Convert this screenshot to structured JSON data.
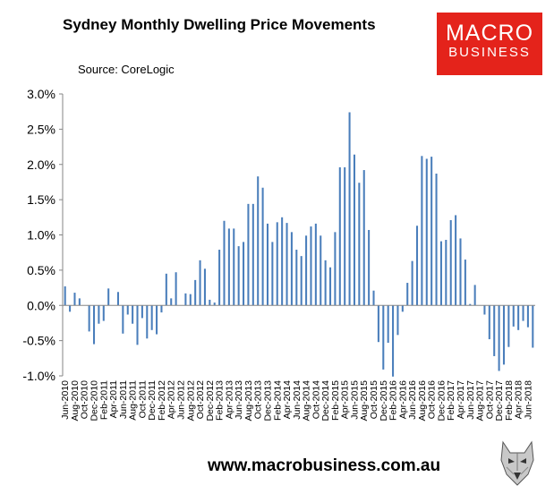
{
  "title": "Sydney Monthly Dwelling Price Movements",
  "source": "Source: CoreLogic",
  "logo": {
    "line1": "MACRO",
    "line2": "BUSINESS",
    "color": "#e4231b"
  },
  "footer_url": "www.macrobusiness.com.au",
  "colors": {
    "bar": "#4a7ebb",
    "axis": "#868686"
  },
  "chart_data": {
    "type": "bar",
    "title": "Sydney Monthly Dwelling Price Movements",
    "xlabel": "",
    "ylabel": "",
    "ylim": [
      -1.0,
      3.0
    ],
    "y_ticks": [
      "3.0%",
      "2.5%",
      "2.0%",
      "1.5%",
      "1.0%",
      "0.5%",
      "0.0%",
      "-0.5%",
      "-1.0%"
    ],
    "grid": false,
    "legend": "none",
    "x_tick_labels": [
      "Jun-2010",
      "Aug-2010",
      "Oct-2010",
      "Dec-2010",
      "Feb-2011",
      "Apr-2011",
      "Jun-2011",
      "Aug-2011",
      "Oct-2011",
      "Dec-2011",
      "Feb-2012",
      "Apr-2012",
      "Jun-2012",
      "Aug-2012",
      "Oct-2012",
      "Dec-2012",
      "Feb-2013",
      "Apr-2013",
      "Jun-2013",
      "Aug-2013",
      "Oct-2013",
      "Dec-2013",
      "Feb-2014",
      "Apr-2014",
      "Jun-2014",
      "Aug-2014",
      "Oct-2014",
      "Dec-2014",
      "Feb-2015",
      "Apr-2015",
      "Jun-2015",
      "Aug-2015",
      "Oct-2015",
      "Dec-2015",
      "Feb-2016",
      "Apr-2016",
      "Jun-2016",
      "Aug-2016",
      "Oct-2016",
      "Dec-2016",
      "Feb-2017",
      "Apr-2017",
      "Jun-2017",
      "Aug-2017",
      "Oct-2017",
      "Dec-2017",
      "Feb-2018",
      "Apr-2018",
      "Jun-2018"
    ],
    "series": [
      {
        "name": "",
        "values": [
          0.27,
          -0.09,
          0.18,
          0.1,
          0.0,
          -0.37,
          -0.55,
          -0.26,
          -0.22,
          0.24,
          0.0,
          0.19,
          -0.4,
          -0.13,
          -0.26,
          -0.56,
          -0.18,
          -0.47,
          -0.35,
          -0.41,
          -0.1,
          0.45,
          0.1,
          0.47,
          0.0,
          0.17,
          0.16,
          0.36,
          0.64,
          0.52,
          0.08,
          0.04,
          0.79,
          1.2,
          1.09,
          1.09,
          0.84,
          0.9,
          1.44,
          1.44,
          1.83,
          1.67,
          1.16,
          0.9,
          1.18,
          1.25,
          1.17,
          1.04,
          0.79,
          0.7,
          0.99,
          1.12,
          1.16,
          0.99,
          0.64,
          0.54,
          1.04,
          1.96,
          1.96,
          2.74,
          2.14,
          1.74,
          1.92,
          1.07,
          0.21,
          -0.52,
          -0.91,
          -0.53,
          -1.01,
          -0.42,
          -0.09,
          0.32,
          0.63,
          1.13,
          2.12,
          2.08,
          2.11,
          1.87,
          0.91,
          0.93,
          1.21,
          1.28,
          0.95,
          0.65,
          0.02,
          0.29,
          0.0,
          -0.13,
          -0.48,
          -0.72,
          -0.93,
          -0.84,
          -0.59,
          -0.3,
          -0.35,
          -0.22,
          -0.31,
          -0.6
        ]
      }
    ]
  }
}
